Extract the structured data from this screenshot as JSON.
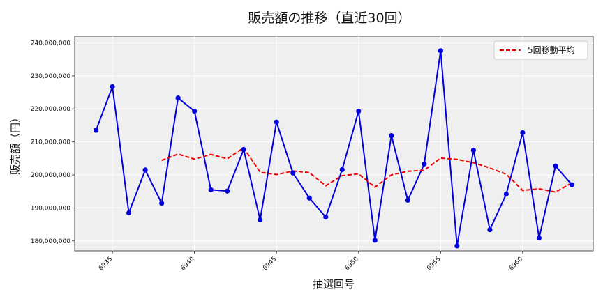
{
  "chart_data": {
    "type": "line",
    "title": "販売額の推移（直近30回）",
    "xlabel": "抽選回号",
    "ylabel": "販売額（円）",
    "x": [
      6934,
      6935,
      6936,
      6937,
      6938,
      6939,
      6940,
      6941,
      6942,
      6943,
      6944,
      6945,
      6946,
      6947,
      6948,
      6949,
      6950,
      6951,
      6952,
      6953,
      6954,
      6955,
      6956,
      6957,
      6958,
      6959,
      6960,
      6961,
      6962,
      6963
    ],
    "xticks": [
      6935,
      6940,
      6945,
      6950,
      6955,
      6960
    ],
    "xtick_labels": [
      "6935",
      "6940",
      "6945",
      "6950",
      "6955",
      "6960"
    ],
    "ylim": [
      177000000,
      242000000
    ],
    "yticks": [
      180000000,
      190000000,
      200000000,
      210000000,
      220000000,
      230000000,
      240000000
    ],
    "ytick_labels": [
      "180,000,000",
      "190,000,000",
      "200,000,000",
      "210,000,000",
      "220,000,000",
      "230,000,000",
      "240,000,000"
    ],
    "grid": true,
    "legend_position": "top-right",
    "series": [
      {
        "name": "",
        "style": "solid-markers",
        "color": "#0000dd",
        "values": [
          213500000,
          226700000,
          188500000,
          201500000,
          191400000,
          223300000,
          219300000,
          195500000,
          195100000,
          207700000,
          186400000,
          216000000,
          200600000,
          193000000,
          187200000,
          201600000,
          219300000,
          180200000,
          211900000,
          192300000,
          203300000,
          237600000,
          178500000,
          207500000,
          183400000,
          194200000,
          212800000,
          180900000,
          202700000,
          197000000
        ]
      },
      {
        "name": "5回移動平均",
        "style": "dashed",
        "color": "#ee0000",
        "values": [
          null,
          null,
          null,
          null,
          204400000,
          206300000,
          204800000,
          206200000,
          204900000,
          208200000,
          200800000,
          200100000,
          201200000,
          200700000,
          196700000,
          199800000,
          200300000,
          196300000,
          200000000,
          201100000,
          201400000,
          205100000,
          204700000,
          203700000,
          202100000,
          200200000,
          195300000,
          195800000,
          194800000,
          197600000
        ]
      }
    ]
  }
}
